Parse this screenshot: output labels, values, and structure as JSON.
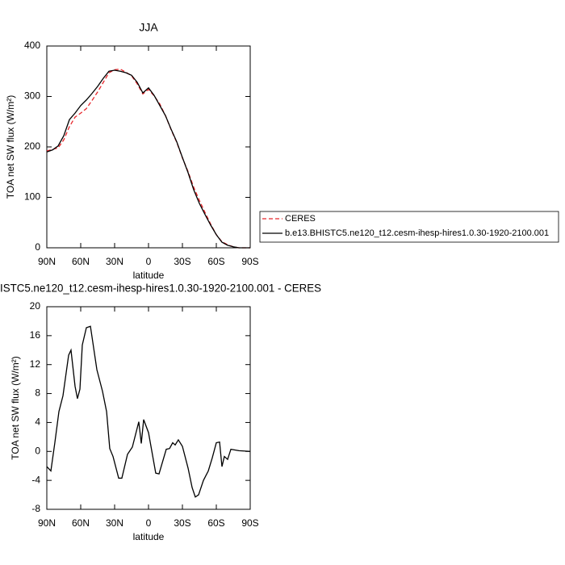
{
  "chart_data": [
    {
      "type": "line",
      "title": "JJA",
      "xlabel": "latitude",
      "ylabel": "TOA net SW flux (W/m²)",
      "x": [
        90,
        85,
        80,
        75,
        70,
        65,
        60,
        55,
        50,
        45,
        40,
        35,
        30,
        25,
        20,
        15,
        10,
        5,
        0,
        -5,
        -10,
        -15,
        -20,
        -25,
        -30,
        -35,
        -40,
        -45,
        -50,
        -55,
        -60,
        -65,
        -70,
        -75,
        -80,
        -85,
        -90
      ],
      "series": [
        {
          "name": "CERES",
          "color": "#e8262b",
          "dashed": true,
          "values": [
            192,
            195,
            198,
            214,
            240,
            259,
            267,
            276,
            292,
            309,
            328,
            347,
            353,
            354,
            348,
            341,
            325,
            305,
            314,
            301,
            285,
            262,
            234,
            209,
            178,
            151,
            120,
            94,
            70,
            47,
            26,
            12,
            6,
            2,
            0,
            0,
            0
          ]
        },
        {
          "name": "b.e13.BHISTC5.ne120_t12.cesm-ihesp-hires1.0.30-1920-2100.001",
          "color": "#000000",
          "dashed": false,
          "values": [
            190,
            194,
            202,
            222,
            254,
            267,
            282,
            293,
            306,
            320,
            336,
            350,
            352,
            350,
            347,
            342,
            328,
            307,
            317,
            302,
            282,
            262,
            235,
            210,
            179,
            149,
            115,
            88,
            66,
            45,
            26,
            11,
            5,
            2,
            0,
            0,
            0
          ]
        }
      ],
      "xlim": [
        90,
        -90
      ],
      "xticks": [
        {
          "value": 90,
          "label": "90N"
        },
        {
          "value": 60,
          "label": "60N"
        },
        {
          "value": 30,
          "label": "30N"
        },
        0,
        {
          "value": -30,
          "label": "30S"
        },
        {
          "value": -60,
          "label": "60S"
        },
        {
          "value": -90,
          "label": "90S"
        }
      ],
      "ylim": [
        0,
        400
      ],
      "yticks": [
        0,
        100,
        200,
        300,
        400
      ],
      "legend": "right"
    },
    {
      "type": "line",
      "title": "ISTC5.ne120_t12.cesm-ihesp-hires1.0.30-1920-2100.001 - CERES",
      "xlabel": "latitude",
      "ylabel": "TOA net SW flux (W/m²)",
      "x": [
        90,
        86.4,
        82.9,
        79.3,
        75.7,
        70.7,
        68.6,
        65,
        62.9,
        60.7,
        58.6,
        55,
        51.4,
        45.7,
        40.7,
        37.1,
        34.3,
        31.4,
        26.4,
        23.6,
        18.6,
        14.3,
        8.6,
        6.4,
        4.3,
        0,
        -6.4,
        -9.3,
        -15.7,
        -18.6,
        -21.4,
        -23.6,
        -26.4,
        -30,
        -35,
        -38.6,
        -41.4,
        -44.3,
        -48.6,
        -52.9,
        -56.4,
        -60,
        -62.9,
        -65,
        -67.1,
        -70,
        -72.9,
        -80,
        -90
      ],
      "series": [
        {
          "color": "#000000",
          "dashed": false,
          "values": [
            -2.1,
            -2.7,
            1.2,
            5.5,
            7.7,
            13.3,
            14,
            9,
            7.3,
            8.6,
            14.7,
            17.1,
            17.3,
            11.3,
            8.3,
            5.5,
            0.4,
            -0.7,
            -3.7,
            -3.7,
            -0.4,
            0.6,
            4.1,
            1.1,
            4.4,
            2.6,
            -3.0,
            -3.1,
            0.3,
            0.4,
            1.2,
            0.9,
            1.6,
            0.7,
            -2.3,
            -5,
            -6.3,
            -6,
            -4,
            -2.7,
            -0.9,
            1.2,
            1.3,
            -2.1,
            -0.7,
            -1.1,
            0.3,
            0.1,
            0
          ]
        }
      ],
      "xlim": [
        90,
        -90
      ],
      "xticks": [
        {
          "value": 90,
          "label": "90N"
        },
        {
          "value": 60,
          "label": "60N"
        },
        {
          "value": 30,
          "label": "30N"
        },
        0,
        {
          "value": -30,
          "label": "30S"
        },
        {
          "value": -60,
          "label": "60S"
        },
        {
          "value": -90,
          "label": "90S"
        }
      ],
      "ylim": [
        -8,
        20
      ],
      "yticks": [
        -8,
        -4,
        0,
        4,
        8,
        12,
        16,
        20
      ]
    }
  ]
}
